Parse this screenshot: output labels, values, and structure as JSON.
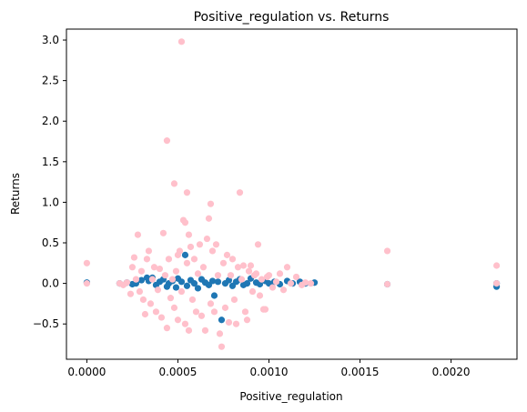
{
  "chart_data": {
    "type": "scatter",
    "title": "Positive_regulation vs. Returns",
    "xlabel": "Positive_regulation",
    "ylabel": "Returns",
    "xlim": [
      -0.000112,
      0.002362
    ],
    "ylim": [
      -0.935,
      3.135
    ],
    "xticks": [
      0.0,
      0.0005,
      0.001,
      0.0015,
      0.002
    ],
    "xtick_labels": [
      "0.0000",
      "0.0005",
      "0.0010",
      "0.0015",
      "0.0020"
    ],
    "yticks": [
      -0.5,
      0.0,
      0.5,
      1.0,
      1.5,
      2.0,
      2.5,
      3.0
    ],
    "ytick_labels": [
      "−0.5",
      "0.0",
      "0.5",
      "1.0",
      "1.5",
      "2.0",
      "2.5",
      "3.0"
    ],
    "grid": false,
    "series_colors": [
      "#1f77b4",
      "#ffc0cb"
    ],
    "series": [
      {
        "color": "#1f77b4",
        "points": [
          [
            0.0,
            0.01
          ],
          [
            0.00018,
            0.0
          ],
          [
            0.00022,
            0.01
          ],
          [
            0.00025,
            -0.01
          ],
          [
            0.00027,
            0.0
          ],
          [
            0.0003,
            0.04
          ],
          [
            0.00033,
            0.07
          ],
          [
            0.00034,
            0.03
          ],
          [
            0.00036,
            0.07
          ],
          [
            0.00038,
            -0.02
          ],
          [
            0.0004,
            0.02
          ],
          [
            0.00042,
            0.05
          ],
          [
            0.00044,
            -0.04
          ],
          [
            0.00045,
            0.0
          ],
          [
            0.00047,
            0.03
          ],
          [
            0.00049,
            -0.05
          ],
          [
            0.0005,
            0.06
          ],
          [
            0.00052,
            0.02
          ],
          [
            0.00054,
            0.35
          ],
          [
            0.00055,
            -0.03
          ],
          [
            0.00057,
            0.04
          ],
          [
            0.00059,
            0.0
          ],
          [
            0.00061,
            -0.06
          ],
          [
            0.00063,
            0.05
          ],
          [
            0.00065,
            0.01
          ],
          [
            0.00067,
            -0.02
          ],
          [
            0.00069,
            0.03
          ],
          [
            0.0007,
            -0.15
          ],
          [
            0.00072,
            0.02
          ],
          [
            0.00074,
            -0.45
          ],
          [
            0.00076,
            0.0
          ],
          [
            0.00078,
            0.04
          ],
          [
            0.0008,
            -0.03
          ],
          [
            0.00082,
            0.02
          ],
          [
            0.00084,
            0.05
          ],
          [
            0.00086,
            -0.02
          ],
          [
            0.00088,
            0.0
          ],
          [
            0.0009,
            0.06
          ],
          [
            0.00093,
            0.01
          ],
          [
            0.00095,
            -0.01
          ],
          [
            0.00098,
            0.03
          ],
          [
            0.001,
            0.0
          ],
          [
            0.00103,
            0.02
          ],
          [
            0.00106,
            -0.01
          ],
          [
            0.0011,
            0.03
          ],
          [
            0.00113,
            0.0
          ],
          [
            0.00117,
            0.02
          ],
          [
            0.0012,
            0.0
          ],
          [
            0.00125,
            0.01
          ],
          [
            0.00165,
            -0.01
          ],
          [
            0.00225,
            -0.04
          ],
          [
            0.00225,
            0.0
          ]
        ]
      },
      {
        "color": "#ffc0cb",
        "points": [
          [
            0.0,
            0.25
          ],
          [
            0.0,
            0.0
          ],
          [
            0.00018,
            0.0
          ],
          [
            0.0002,
            -0.02
          ],
          [
            0.00022,
            0.01
          ],
          [
            0.00024,
            -0.13
          ],
          [
            0.00025,
            0.2
          ],
          [
            0.00026,
            0.32
          ],
          [
            0.00027,
            0.05
          ],
          [
            0.00028,
            0.6
          ],
          [
            0.00029,
            -0.1
          ],
          [
            0.0003,
            0.15
          ],
          [
            0.00031,
            -0.2
          ],
          [
            0.00032,
            -0.38
          ],
          [
            0.00033,
            0.3
          ],
          [
            0.00034,
            0.4
          ],
          [
            0.00035,
            -0.25
          ],
          [
            0.00036,
            0.05
          ],
          [
            0.00037,
            0.2
          ],
          [
            0.00038,
            -0.35
          ],
          [
            0.00039,
            -0.08
          ],
          [
            0.0004,
            0.18
          ],
          [
            0.00041,
            -0.42
          ],
          [
            0.00042,
            0.62
          ],
          [
            0.00043,
            0.1
          ],
          [
            0.00044,
            1.76
          ],
          [
            0.00044,
            -0.55
          ],
          [
            0.00045,
            0.3
          ],
          [
            0.00046,
            -0.18
          ],
          [
            0.00047,
            0.05
          ],
          [
            0.00048,
            1.23
          ],
          [
            0.00048,
            -0.3
          ],
          [
            0.00049,
            0.15
          ],
          [
            0.0005,
            0.35
          ],
          [
            0.0005,
            -0.45
          ],
          [
            0.00051,
            0.4
          ],
          [
            0.00052,
            2.98
          ],
          [
            0.00052,
            -0.1
          ],
          [
            0.00053,
            0.78
          ],
          [
            0.00054,
            0.75
          ],
          [
            0.00054,
            -0.5
          ],
          [
            0.00055,
            1.12
          ],
          [
            0.00055,
            0.25
          ],
          [
            0.00056,
            0.6
          ],
          [
            0.00056,
            -0.58
          ],
          [
            0.00057,
            0.45
          ],
          [
            0.00058,
            -0.2
          ],
          [
            0.00059,
            0.3
          ],
          [
            0.0006,
            -0.35
          ],
          [
            0.00061,
            0.12
          ],
          [
            0.00062,
            0.48
          ],
          [
            0.00063,
            -0.4
          ],
          [
            0.00064,
            0.2
          ],
          [
            0.00065,
            -0.58
          ],
          [
            0.00066,
            0.55
          ],
          [
            0.00067,
            0.8
          ],
          [
            0.00068,
            0.98
          ],
          [
            0.00068,
            -0.25
          ],
          [
            0.00069,
            0.4
          ],
          [
            0.0007,
            -0.35
          ],
          [
            0.00071,
            0.48
          ],
          [
            0.00072,
            0.1
          ],
          [
            0.00073,
            -0.62
          ],
          [
            0.00074,
            -0.78
          ],
          [
            0.00075,
            0.25
          ],
          [
            0.00076,
            -0.3
          ],
          [
            0.00077,
            0.35
          ],
          [
            0.00078,
            -0.48
          ],
          [
            0.00079,
            0.1
          ],
          [
            0.0008,
            0.3
          ],
          [
            0.00081,
            -0.2
          ],
          [
            0.00082,
            -0.5
          ],
          [
            0.00083,
            0.2
          ],
          [
            0.00084,
            1.12
          ],
          [
            0.00085,
            0.05
          ],
          [
            0.00086,
            0.22
          ],
          [
            0.00087,
            -0.35
          ],
          [
            0.00088,
            -0.45
          ],
          [
            0.00089,
            0.15
          ],
          [
            0.0009,
            0.22
          ],
          [
            0.00091,
            -0.1
          ],
          [
            0.00092,
            0.1
          ],
          [
            0.00093,
            0.12
          ],
          [
            0.00094,
            0.48
          ],
          [
            0.00095,
            -0.15
          ],
          [
            0.00096,
            0.05
          ],
          [
            0.00097,
            -0.32
          ],
          [
            0.00098,
            -0.32
          ],
          [
            0.00099,
            0.08
          ],
          [
            0.001,
            0.1
          ],
          [
            0.00102,
            -0.05
          ],
          [
            0.00104,
            0.02
          ],
          [
            0.00106,
            0.12
          ],
          [
            0.00108,
            -0.08
          ],
          [
            0.0011,
            0.2
          ],
          [
            0.00112,
            0.0
          ],
          [
            0.00115,
            0.08
          ],
          [
            0.00118,
            -0.02
          ],
          [
            0.0012,
            0.01
          ],
          [
            0.00123,
            0.0
          ],
          [
            0.00165,
            0.4
          ],
          [
            0.00165,
            -0.01
          ],
          [
            0.00225,
            0.22
          ],
          [
            0.00225,
            0.0
          ]
        ]
      }
    ]
  }
}
